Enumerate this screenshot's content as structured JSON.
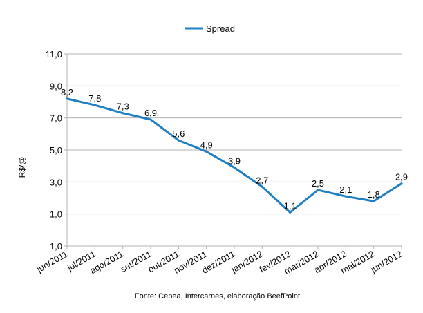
{
  "chart_data": {
    "type": "line",
    "title": "",
    "xlabel": "",
    "ylabel": "R$/@",
    "categories": [
      "jun/2011",
      "jul/2011",
      "ago/2011",
      "set/2011",
      "out/2011",
      "nov/2011",
      "dez/2011",
      "jan/2012",
      "fev/2012",
      "mar/2012",
      "abr/2012",
      "mai/2012",
      "jun/2012"
    ],
    "series": [
      {
        "name": "Spread",
        "values": [
          8.2,
          7.8,
          7.3,
          6.9,
          5.6,
          4.9,
          3.9,
          2.7,
          1.1,
          2.5,
          2.1,
          1.8,
          2.9
        ],
        "labels": [
          "8,2",
          "7,8",
          "7,3",
          "6,9",
          "5,6",
          "4,9",
          "3,9",
          "2,7",
          "1,1",
          "2,5",
          "2,1",
          "1,8",
          "2,9"
        ],
        "color": "#1f7fc4"
      }
    ],
    "ylim": [
      -1.0,
      11.0
    ],
    "yticks": [
      -1.0,
      1.0,
      3.0,
      5.0,
      7.0,
      9.0,
      11.0
    ],
    "ytick_labels": [
      "-1,0",
      "1,0",
      "3,0",
      "5,0",
      "7,0",
      "9,0",
      "11,0"
    ],
    "grid": true,
    "legend": "top-center",
    "gridline_color": "#b3b3b3",
    "source_note": "Fonte: Cepea, Intercarnes, elaboração BeefPoint."
  }
}
